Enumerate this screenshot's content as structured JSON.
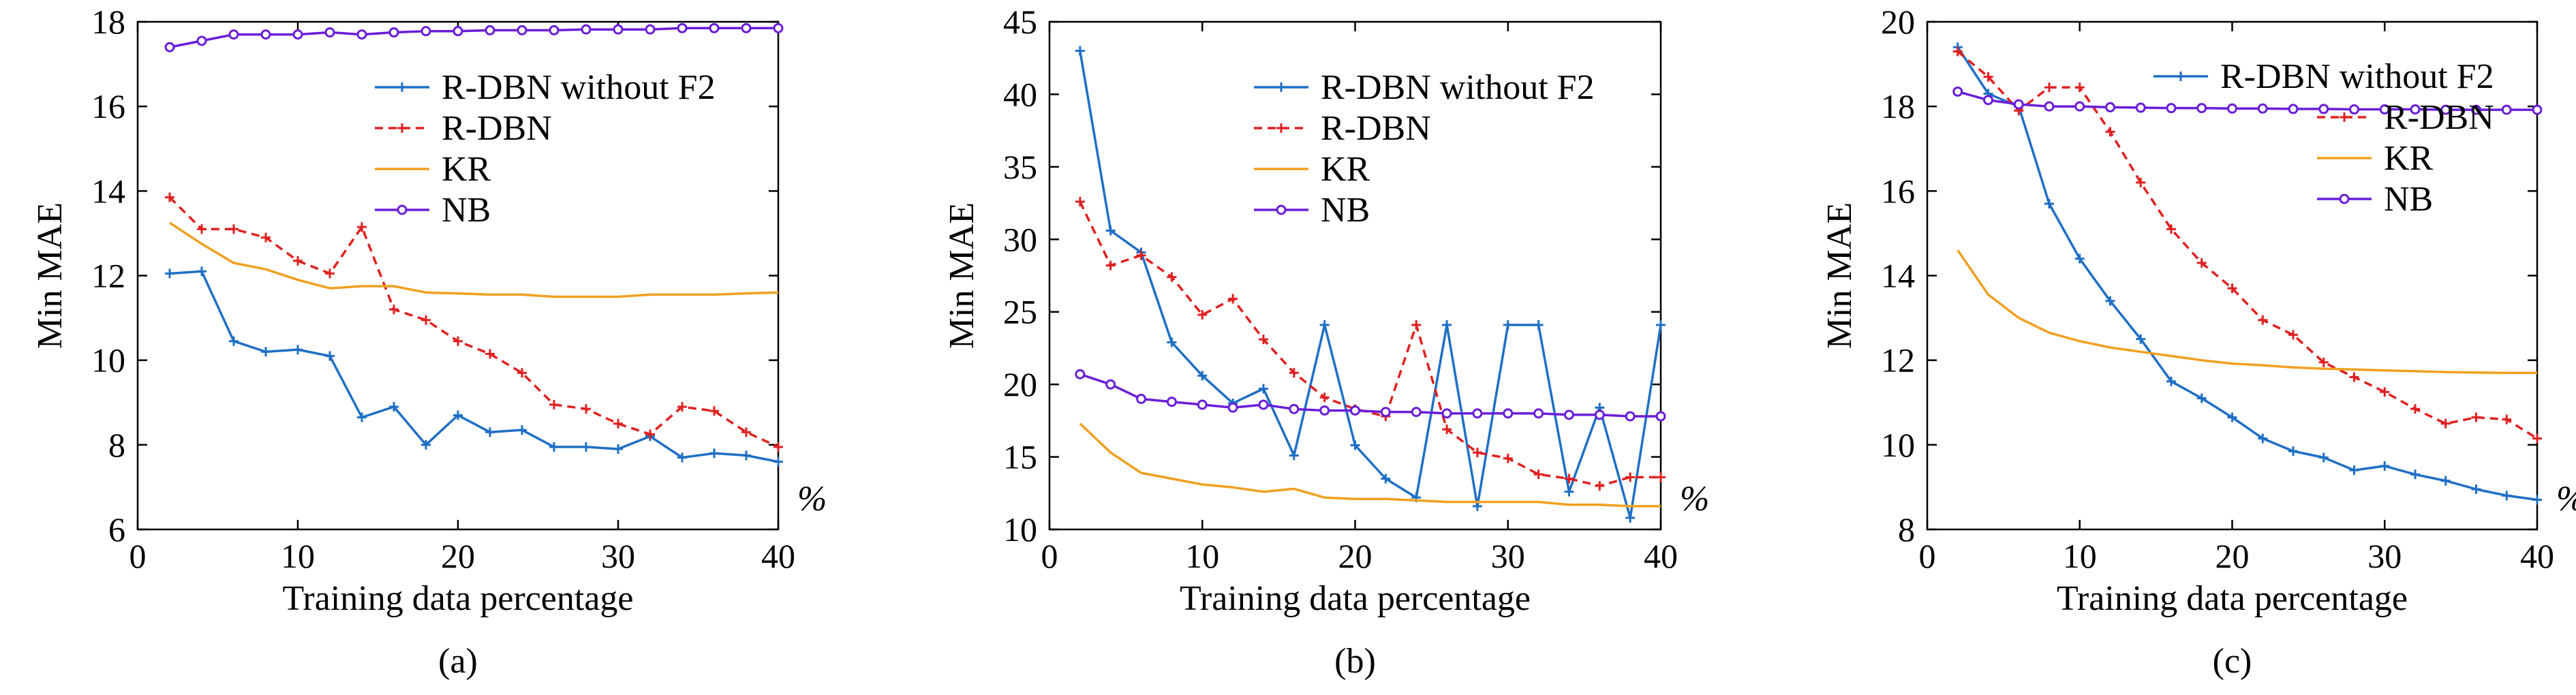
{
  "series_styles": {
    "R-DBN without F2": {
      "color": "#1f6fc5",
      "dash": "",
      "marker": "plus"
    },
    "R-DBN": {
      "color": "#e02020",
      "dash": "12,8",
      "marker": "plus"
    },
    "KR": {
      "color": "#f0a020",
      "dash": "",
      "marker": "none"
    },
    "NB": {
      "color": "#6a1ed8",
      "dash": "",
      "marker": "circle"
    }
  },
  "chart_data": [
    {
      "type": "line",
      "caption": "(a)",
      "xlabel": "Training data percentage",
      "ylabel": "Min MAE",
      "x_unit": "%",
      "xlim": [
        0,
        40
      ],
      "ylim": [
        6,
        18
      ],
      "xticks": [
        0,
        10,
        20,
        30,
        40
      ],
      "yticks": [
        6,
        8,
        10,
        12,
        14,
        16,
        18
      ],
      "grid": false,
      "legend": {
        "position": "upper-right",
        "entries": [
          "R-DBN without F2",
          "R-DBN",
          "KR",
          "NB"
        ]
      },
      "x": [
        2,
        4,
        6,
        8,
        10,
        12,
        14,
        16,
        18,
        20,
        22,
        24,
        26,
        28,
        30,
        32,
        34,
        36,
        38,
        40
      ],
      "series": [
        {
          "name": "R-DBN without F2",
          "values": [
            12.05,
            12.1,
            10.45,
            10.2,
            10.25,
            10.1,
            8.65,
            8.9,
            8.0,
            8.7,
            8.3,
            8.35,
            7.95,
            7.95,
            7.9,
            8.2,
            7.7,
            7.8,
            7.75,
            7.6
          ]
        },
        {
          "name": "R-DBN",
          "values": [
            13.85,
            13.1,
            13.1,
            12.9,
            12.35,
            12.05,
            13.15,
            11.2,
            10.95,
            10.45,
            10.15,
            9.7,
            8.95,
            8.85,
            8.5,
            8.25,
            8.9,
            8.8,
            8.3,
            7.95
          ]
        },
        {
          "name": "KR",
          "values": [
            13.25,
            12.75,
            12.3,
            12.15,
            11.9,
            11.7,
            11.75,
            11.75,
            11.6,
            11.58,
            11.55,
            11.55,
            11.5,
            11.5,
            11.5,
            11.55,
            11.55,
            11.55,
            11.58,
            11.6
          ]
        },
        {
          "name": "NB",
          "values": [
            17.4,
            17.55,
            17.7,
            17.7,
            17.7,
            17.75,
            17.7,
            17.75,
            17.78,
            17.78,
            17.8,
            17.8,
            17.8,
            17.82,
            17.82,
            17.82,
            17.85,
            17.85,
            17.85,
            17.85
          ]
        }
      ]
    },
    {
      "type": "line",
      "caption": "(b)",
      "xlabel": "Training data percentage",
      "ylabel": "Min MAE",
      "x_unit": "%",
      "xlim": [
        0,
        40
      ],
      "ylim": [
        10,
        45
      ],
      "xticks": [
        0,
        10,
        20,
        30,
        40
      ],
      "yticks": [
        10,
        15,
        20,
        25,
        30,
        35,
        40,
        45
      ],
      "grid": false,
      "legend": {
        "position": "upper-right",
        "entries": [
          "R-DBN without F2",
          "R-DBN",
          "KR",
          "NB"
        ]
      },
      "x": [
        2,
        4,
        6,
        8,
        10,
        12,
        14,
        16,
        18,
        20,
        22,
        24,
        26,
        28,
        30,
        32,
        34,
        36,
        38,
        40
      ],
      "series": [
        {
          "name": "R-DBN without F2",
          "values": [
            43.0,
            30.6,
            29.1,
            22.9,
            20.6,
            18.7,
            19.7,
            15.1,
            24.1,
            15.8,
            13.5,
            12.2,
            24.1,
            11.6,
            24.1,
            24.1,
            12.6,
            18.4,
            10.8,
            24.1
          ]
        },
        {
          "name": "R-DBN",
          "values": [
            32.6,
            28.2,
            28.9,
            27.4,
            24.8,
            25.9,
            23.1,
            20.8,
            19.1,
            18.3,
            17.8,
            24.1,
            16.9,
            15.3,
            14.9,
            13.8,
            13.5,
            13.0,
            13.6,
            13.6
          ]
        },
        {
          "name": "KR",
          "values": [
            17.3,
            15.3,
            13.9,
            13.5,
            13.1,
            12.9,
            12.6,
            12.8,
            12.2,
            12.1,
            12.1,
            12.0,
            11.9,
            11.9,
            11.9,
            11.9,
            11.7,
            11.7,
            11.6,
            11.6
          ]
        },
        {
          "name": "NB",
          "values": [
            20.7,
            20.0,
            19.0,
            18.8,
            18.6,
            18.4,
            18.6,
            18.3,
            18.2,
            18.2,
            18.1,
            18.1,
            18.0,
            18.0,
            18.0,
            18.0,
            17.9,
            17.9,
            17.8,
            17.8
          ]
        }
      ]
    },
    {
      "type": "line",
      "caption": "(c)",
      "xlabel": "Training data percentage",
      "ylabel": "Min MAE",
      "x_unit": "%",
      "xlim": [
        0,
        40
      ],
      "ylim": [
        8,
        20
      ],
      "xticks": [
        0,
        10,
        20,
        30,
        40
      ],
      "yticks": [
        8,
        10,
        12,
        14,
        16,
        18,
        20
      ],
      "grid": false,
      "legend": {
        "position": "upper-right, staggered",
        "entries": [
          "R-DBN without F2",
          "R-DBN",
          "KR",
          "NB"
        ]
      },
      "x": [
        2,
        4,
        6,
        8,
        10,
        12,
        14,
        16,
        18,
        20,
        22,
        24,
        26,
        28,
        30,
        32,
        34,
        36,
        38,
        40
      ],
      "series": [
        {
          "name": "R-DBN without F2",
          "values": [
            19.4,
            18.3,
            18.0,
            15.7,
            14.4,
            13.4,
            12.5,
            11.5,
            11.1,
            10.65,
            10.15,
            9.85,
            9.7,
            9.4,
            9.5,
            9.3,
            9.15,
            8.95,
            8.8,
            8.7
          ]
        },
        {
          "name": "R-DBN",
          "values": [
            19.3,
            18.7,
            17.9,
            18.45,
            18.45,
            17.4,
            16.2,
            15.1,
            14.3,
            13.7,
            12.95,
            12.6,
            11.95,
            11.6,
            11.25,
            10.85,
            10.5,
            10.65,
            10.6,
            10.15
          ]
        },
        {
          "name": "KR",
          "values": [
            14.6,
            13.55,
            13.0,
            12.65,
            12.45,
            12.3,
            12.2,
            12.1,
            12.0,
            11.92,
            11.88,
            11.83,
            11.8,
            11.78,
            11.76,
            11.74,
            11.72,
            11.71,
            11.7,
            11.7
          ]
        },
        {
          "name": "NB",
          "values": [
            18.35,
            18.15,
            18.05,
            18.0,
            18.0,
            17.98,
            17.97,
            17.96,
            17.96,
            17.95,
            17.95,
            17.94,
            17.94,
            17.93,
            17.93,
            17.93,
            17.92,
            17.92,
            17.92,
            17.92
          ]
        }
      ]
    }
  ]
}
